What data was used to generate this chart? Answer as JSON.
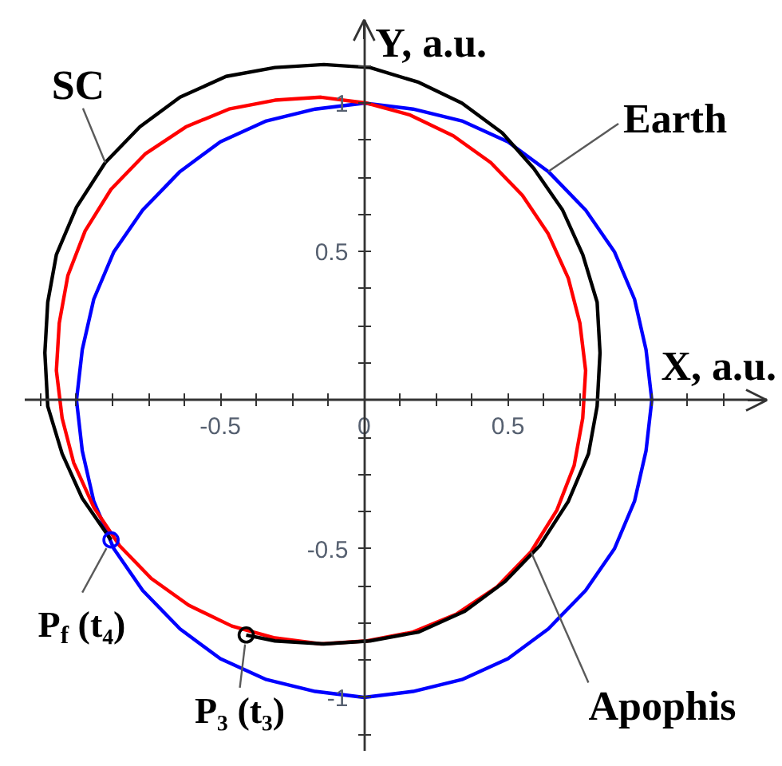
{
  "chart_data": {
    "type": "line",
    "xlabel": "X, a.u.",
    "ylabel": "Y, a.u.",
    "xlim": [
      -1.18,
      1.4
    ],
    "ylim": [
      -1.18,
      1.28
    ],
    "xticks": [
      {
        "value": -1.125,
        "label": null
      },
      {
        "value": -1,
        "label": null
      },
      {
        "value": -0.875,
        "label": null
      },
      {
        "value": -0.75,
        "label": null
      },
      {
        "value": -0.625,
        "label": null
      },
      -0.5,
      {
        "value": -0.375,
        "label": null
      },
      {
        "value": -0.25,
        "label": null
      },
      {
        "value": -0.125,
        "label": null
      },
      0,
      {
        "value": 0.125,
        "label": null
      },
      {
        "value": 0.25,
        "label": null
      },
      {
        "value": 0.375,
        "label": null
      },
      0.5,
      {
        "value": 0.625,
        "label": null
      },
      {
        "value": 0.75,
        "label": null
      },
      {
        "value": 0.875,
        "label": null
      },
      {
        "value": 1,
        "label": null
      },
      {
        "value": 1.125,
        "label": null
      },
      {
        "value": 1.25,
        "label": null
      }
    ],
    "yticks": [
      {
        "value": -1.125,
        "label": null
      },
      -1,
      {
        "value": -0.875,
        "label": null
      },
      {
        "value": -0.75,
        "label": null
      },
      {
        "value": -0.625,
        "label": null
      },
      -0.5,
      {
        "value": -0.375,
        "label": null
      },
      {
        "value": -0.25,
        "label": null
      },
      {
        "value": -0.125,
        "label": null
      },
      {
        "value": 0.125,
        "label": null
      },
      {
        "value": 0.25,
        "label": null
      },
      {
        "value": 0.375,
        "label": null
      },
      0.5,
      {
        "value": 0.625,
        "label": null
      },
      {
        "value": 0.75,
        "label": null
      },
      {
        "value": 0.875,
        "label": null
      },
      1,
      {
        "value": 1.125,
        "label": null
      }
    ],
    "line_style": "solid",
    "series": [
      {
        "name": "Earth",
        "color": "#0000ff",
        "x": [
          1,
          0.98,
          0.94,
          0.87,
          0.77,
          0.64,
          0.5,
          0.34,
          0.17,
          0,
          -0.17,
          -0.34,
          -0.5,
          -0.64,
          -0.77,
          -0.87,
          -0.94,
          -0.98,
          -1,
          -0.98,
          -0.94,
          -0.87,
          -0.77,
          -0.64,
          -0.5,
          -0.34,
          -0.17,
          0,
          0.17,
          0.34,
          0.5,
          0.64,
          0.77,
          0.87,
          0.94,
          0.98,
          1,
          0.98
        ],
        "values": [
          0,
          0.17,
          0.34,
          0.5,
          0.64,
          0.77,
          0.87,
          0.94,
          0.98,
          1,
          0.98,
          0.94,
          0.87,
          0.77,
          0.64,
          0.5,
          0.34,
          0.17,
          0,
          -0.17,
          -0.34,
          -0.5,
          -0.64,
          -0.77,
          -0.87,
          -0.94,
          -0.98,
          -1,
          -0.98,
          -0.94,
          -0.87,
          -0.77,
          -0.64,
          -0.5,
          -0.34,
          -0.17,
          0,
          0.17
        ]
      },
      {
        "name": "Apophis",
        "color": "#ff0000",
        "x": [
          0.77,
          0.75,
          0.71,
          0.64,
          0.55,
          0.44,
          0.31,
          0.16,
          0.01,
          -0.15,
          -0.31,
          -0.47,
          -0.62,
          -0.76,
          -0.88,
          -0.97,
          -1.03,
          -1.06,
          -1.07,
          -1.05,
          -1.01,
          -0.94,
          -0.85,
          -0.74,
          -0.61,
          -0.46,
          -0.31,
          -0.15,
          0.01,
          0.17,
          0.32,
          0.46,
          0.58,
          0.67,
          0.73,
          0.76,
          0.77,
          0.75
        ],
        "values": [
          0.1,
          0.26,
          0.41,
          0.56,
          0.69,
          0.8,
          0.89,
          0.96,
          1,
          1.02,
          1.01,
          0.98,
          0.92,
          0.83,
          0.71,
          0.57,
          0.42,
          0.26,
          0.1,
          -0.06,
          -0.21,
          -0.36,
          -0.49,
          -0.6,
          -0.69,
          -0.76,
          -0.8,
          -0.82,
          -0.81,
          -0.78,
          -0.72,
          -0.63,
          -0.51,
          -0.37,
          -0.22,
          -0.06,
          0.1,
          0.26
        ]
      },
      {
        "name": "SC",
        "color": "#000000",
        "x": [
          -0.41,
          -0.31,
          -0.14,
          0.02,
          0.19,
          0.35,
          0.49,
          0.61,
          0.71,
          0.78,
          0.81,
          0.82,
          0.81,
          0.76,
          0.69,
          0.59,
          0.48,
          0.34,
          0.19,
          0.02,
          -0.14,
          -0.31,
          -0.48,
          -0.64,
          -0.78,
          -0.9,
          -1,
          -1.07,
          -1.1,
          -1.11,
          -1.1,
          -1.05,
          -0.98,
          -0.88
        ],
        "values": [
          -0.79,
          -0.81,
          -0.82,
          -0.81,
          -0.78,
          -0.71,
          -0.61,
          -0.49,
          -0.34,
          -0.18,
          -0.02,
          0.16,
          0.33,
          0.49,
          0.64,
          0.78,
          0.9,
          1,
          1.07,
          1.12,
          1.13,
          1.12,
          1.09,
          1.02,
          0.92,
          0.8,
          0.65,
          0.49,
          0.33,
          0.16,
          -0.02,
          -0.18,
          -0.33,
          -0.47
        ]
      },
      {
        "type": "scatter",
        "color": "#0000ff",
        "marker": "circle",
        "x": [
          -0.88
        ],
        "values": [
          -0.47
        ]
      },
      {
        "type": "scatter",
        "color": "#000000",
        "marker": "circle",
        "x": [
          -0.41
        ],
        "values": [
          -0.79
        ]
      }
    ],
    "annotations": [
      {
        "text": "P$_{f}$ (t₄)",
        "x": -0.88,
        "y": -0.47
      },
      {
        "text": "P₃ (t₃)",
        "x": -0.41,
        "y": -0.79
      }
    ]
  }
}
